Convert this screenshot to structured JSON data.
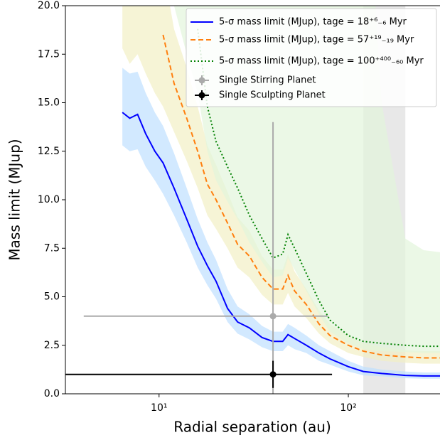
{
  "chart_data": {
    "type": "line",
    "xlabel": "Radial separation (au)",
    "ylabel": "Mass limit (MJup)",
    "xscale": "log",
    "xlim": [
      3.2,
      305
    ],
    "ylim": [
      0,
      20
    ],
    "xticks": [
      {
        "value": 10,
        "label": "10¹"
      },
      {
        "value": 100,
        "label": "10²"
      }
    ],
    "yticks": [
      {
        "value": 0,
        "label": "0.0"
      },
      2.5,
      {
        "value": 5,
        "label": "5.0"
      },
      7.5,
      {
        "value": 10,
        "label": "10.0"
      },
      12.5,
      {
        "value": 15,
        "label": "15.0"
      },
      17.5,
      {
        "value": 20,
        "label": "20.0"
      }
    ],
    "legend": "upper right",
    "x": [
      6.4,
      7,
      7.7,
      8.5,
      9.5,
      10.5,
      12,
      14,
      16,
      18,
      20,
      23,
      26,
      30,
      35,
      40,
      45,
      48,
      52,
      60,
      70,
      80,
      100,
      120,
      150,
      200,
      250,
      305
    ],
    "series": [
      {
        "name": "5-σ mass limit (MJup), tage = 18⁺⁶₋₆ Myr",
        "color": "#0000ff",
        "linestyle": "solid",
        "band_color": "#bfdfff",
        "values": [
          14.5,
          14.2,
          14.4,
          13.4,
          12.5,
          11.9,
          10.6,
          9.0,
          7.6,
          6.6,
          5.8,
          4.4,
          3.7,
          3.4,
          2.9,
          2.7,
          2.7,
          3.05,
          2.85,
          2.5,
          2.1,
          1.8,
          1.4,
          1.15,
          1.05,
          0.95,
          0.92,
          0.92
        ],
        "band_upper": [
          16.8,
          16.5,
          16.6,
          15.5,
          14.5,
          13.8,
          12.4,
          10.6,
          9.0,
          7.8,
          6.9,
          5.4,
          4.5,
          4.1,
          3.5,
          3.2,
          3.2,
          3.6,
          3.4,
          3.0,
          2.5,
          2.2,
          1.7,
          1.4,
          1.25,
          1.15,
          1.1,
          1.1
        ],
        "band_lower": [
          12.8,
          12.5,
          12.6,
          11.7,
          11.0,
          10.3,
          9.2,
          7.8,
          6.5,
          5.6,
          4.9,
          3.7,
          3.1,
          2.8,
          2.4,
          2.2,
          2.2,
          2.5,
          2.3,
          2.1,
          1.7,
          1.5,
          1.15,
          0.95,
          0.9,
          0.8,
          0.78,
          0.78
        ]
      },
      {
        "name": "5-σ mass limit (MJup), tage = 57⁺¹⁹₋₁₉ Myr",
        "color": "#ff7f0e",
        "linestyle": "dashed",
        "band_color": "#f2efc4",
        "values": [
          null,
          null,
          null,
          null,
          null,
          18.5,
          16.0,
          14.2,
          12.5,
          10.8,
          10.0,
          8.8,
          7.7,
          7.1,
          6.0,
          5.4,
          5.4,
          6.1,
          5.3,
          4.6,
          3.6,
          3.0,
          2.5,
          2.2,
          2.0,
          1.9,
          1.85,
          1.85
        ],
        "band_upper": [
          25,
          25,
          25,
          25,
          25,
          22,
          18.8,
          16.8,
          14.8,
          12.8,
          11.8,
          10.4,
          9.1,
          8.4,
          7.1,
          6.4,
          6.4,
          7.2,
          6.3,
          5.4,
          4.3,
          3.6,
          3.0,
          2.6,
          2.4,
          2.25,
          2.2,
          2.2
        ],
        "band_lower": [
          17.8,
          17.0,
          17.5,
          16.5,
          15.5,
          14.8,
          13.5,
          12.0,
          10.6,
          9.2,
          8.5,
          7.5,
          6.5,
          6.0,
          5.1,
          4.6,
          4.6,
          5.2,
          4.5,
          3.9,
          3.1,
          2.6,
          2.1,
          1.9,
          1.7,
          1.6,
          1.55,
          1.55
        ]
      },
      {
        "name": "5-σ mass limit (MJup), tage = 100⁺⁴⁰⁰₋₆₀ Myr",
        "color": "#008000",
        "linestyle": "dotted",
        "band_color": "#e3f5dc",
        "values": [
          null,
          null,
          null,
          null,
          null,
          null,
          null,
          null,
          18.8,
          14.8,
          13.0,
          11.7,
          10.6,
          9.2,
          8.0,
          7.0,
          7.2,
          8.2,
          7.5,
          6.2,
          4.8,
          3.8,
          3.0,
          2.7,
          2.6,
          2.5,
          2.45,
          2.45
        ],
        "band_upper": [
          null,
          null,
          null,
          null,
          null,
          30,
          30,
          30,
          30,
          30,
          30,
          30,
          30,
          30,
          30,
          30,
          30,
          30,
          30,
          30,
          30,
          30,
          30,
          30,
          15,
          8.0,
          7.4,
          7.3
        ],
        "band_lower": [
          null,
          null,
          null,
          null,
          null,
          22,
          20,
          17.5,
          15.5,
          12.5,
          11.0,
          9.9,
          9.0,
          7.8,
          6.8,
          6.0,
          6.1,
          7.0,
          6.4,
          5.3,
          4.1,
          3.2,
          2.6,
          2.3,
          2.2,
          2.15,
          2.1,
          2.1
        ]
      }
    ],
    "points": [
      {
        "name": "Single Stirring Planet",
        "color": "#aaaaaa",
        "x": 40,
        "y": 4,
        "xerr": [
          36,
          38
        ],
        "yerr": [
          4,
          10
        ]
      },
      {
        "name": "Single Sculpting Planet",
        "color": "#000000",
        "x": 40,
        "y": 1,
        "xerr": [
          37,
          42
        ],
        "yerr": [
          0.7,
          0.7
        ]
      }
    ],
    "shaded_region": {
      "x": [
        120,
        200
      ],
      "color": "#d9d9d9"
    }
  }
}
